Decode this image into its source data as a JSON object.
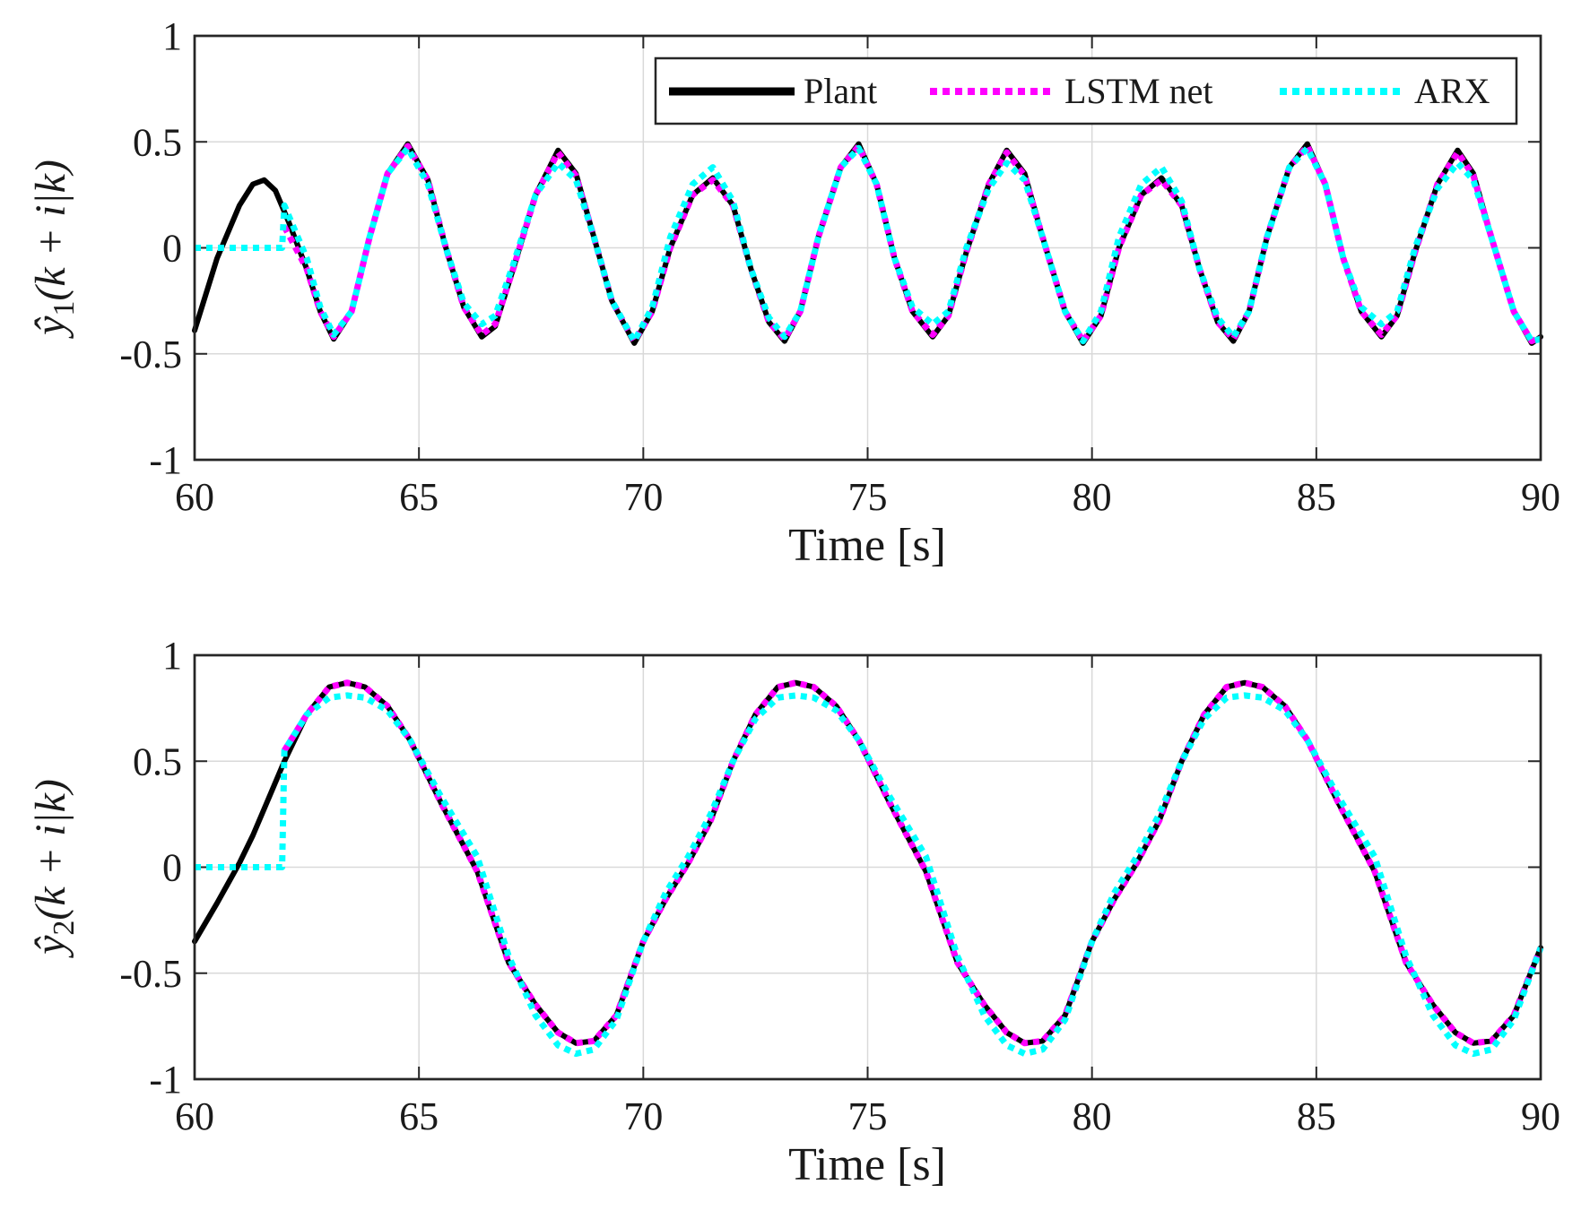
{
  "colors": {
    "plant": "#000000",
    "lstm": "#ff00ff",
    "arx": "#00ffff"
  },
  "legend": {
    "items": [
      "Plant",
      "LSTM net",
      "ARX"
    ]
  },
  "chart_data": [
    {
      "type": "line",
      "xlabel": "Time [s]",
      "ylabel": "ŷ1(k + i|k)",
      "ylabel_parts": {
        "base": "ŷ",
        "sub": "1",
        "rest": "(k + i|k)"
      },
      "xlim": [
        60,
        90
      ],
      "ylim": [
        -1,
        1
      ],
      "xticks": [
        60,
        65,
        70,
        75,
        80,
        85,
        90
      ],
      "xtick_labels": [
        "60",
        "65",
        "70",
        "75",
        "80",
        "85",
        "90"
      ],
      "yticks": [
        -1,
        -0.5,
        0,
        0.5,
        1
      ],
      "ytick_labels": [
        "-1",
        "-0.5",
        "0",
        "0.5",
        "1"
      ],
      "grid": true,
      "legend_position": "top-right",
      "series": [
        {
          "name": "Plant",
          "style": "solid",
          "x": [
            60,
            60.5,
            61,
            61.3,
            61.55,
            61.8,
            62.1,
            62.5,
            62.8,
            63.1,
            63.5,
            63.9,
            64.3,
            64.75,
            65.2,
            65.6,
            66,
            66.4,
            66.7,
            67.1,
            67.6,
            68.1,
            68.5,
            68.9,
            69.3,
            69.8,
            70.2,
            70.6,
            71.1,
            71.55,
            72,
            72.4,
            72.8,
            73.15,
            73.5,
            73.9,
            74.4,
            74.8,
            75.2,
            75.6,
            76,
            76.45,
            76.8,
            77.2,
            77.7,
            78.1,
            78.5,
            78.9,
            79.4,
            79.8,
            80.2,
            80.6,
            81.1,
            81.55,
            82,
            82.4,
            82.8,
            83.15,
            83.5,
            83.9,
            84.4,
            84.8,
            85.2,
            85.6,
            86,
            86.45,
            86.8,
            87.2,
            87.7,
            88.15,
            88.5,
            88.9,
            89.4,
            89.8,
            90
          ],
          "y": [
            -0.39,
            -0.05,
            0.2,
            0.3,
            0.32,
            0.27,
            0.12,
            -0.1,
            -0.3,
            -0.43,
            -0.3,
            0.05,
            0.35,
            0.49,
            0.32,
            0.0,
            -0.28,
            -0.42,
            -0.37,
            -0.1,
            0.25,
            0.46,
            0.35,
            0.05,
            -0.25,
            -0.45,
            -0.3,
            0.0,
            0.25,
            0.33,
            0.2,
            -0.1,
            -0.35,
            -0.44,
            -0.3,
            0.05,
            0.38,
            0.49,
            0.3,
            -0.05,
            -0.3,
            -0.42,
            -0.32,
            -0.02,
            0.3,
            0.46,
            0.35,
            0.05,
            -0.3,
            -0.45,
            -0.32,
            0.0,
            0.25,
            0.33,
            0.2,
            -0.1,
            -0.35,
            -0.44,
            -0.3,
            0.05,
            0.38,
            0.49,
            0.3,
            -0.05,
            -0.3,
            -0.42,
            -0.32,
            -0.02,
            0.3,
            0.46,
            0.35,
            0.05,
            -0.3,
            -0.45,
            -0.42
          ]
        },
        {
          "name": "LSTM net",
          "style": "dotted",
          "x": [
            62.0,
            62.5,
            62.8,
            63.1,
            63.5,
            63.9,
            64.3,
            64.75,
            65.2,
            65.6,
            66,
            66.4,
            66.7,
            67.1,
            67.6,
            68.1,
            68.5,
            68.9,
            69.3,
            69.8,
            70.2,
            70.6,
            71.1,
            71.55,
            72,
            72.4,
            72.8,
            73.15,
            73.5,
            73.9,
            74.4,
            74.8,
            75.2,
            75.6,
            76,
            76.45,
            76.8,
            77.2,
            77.7,
            78.1,
            78.5,
            78.9,
            79.4,
            79.8,
            80.2,
            80.6,
            81.1,
            81.55,
            82,
            82.4,
            82.8,
            83.15,
            83.5,
            83.9,
            84.4,
            84.8,
            85.2,
            85.6,
            86,
            86.45,
            86.8,
            87.2,
            87.7,
            88.15,
            88.5,
            88.9,
            89.4,
            89.8,
            90
          ],
          "y": [
            0.1,
            -0.1,
            -0.3,
            -0.42,
            -0.3,
            0.05,
            0.35,
            0.48,
            0.32,
            0.0,
            -0.28,
            -0.41,
            -0.36,
            -0.1,
            0.25,
            0.45,
            0.34,
            0.05,
            -0.25,
            -0.44,
            -0.3,
            0.0,
            0.25,
            0.32,
            0.2,
            -0.1,
            -0.35,
            -0.43,
            -0.3,
            0.05,
            0.38,
            0.48,
            0.3,
            -0.05,
            -0.3,
            -0.41,
            -0.32,
            -0.02,
            0.3,
            0.45,
            0.34,
            0.05,
            -0.3,
            -0.44,
            -0.32,
            0.0,
            0.25,
            0.32,
            0.2,
            -0.1,
            -0.35,
            -0.43,
            -0.3,
            0.05,
            0.38,
            0.48,
            0.3,
            -0.05,
            -0.3,
            -0.41,
            -0.32,
            -0.02,
            0.3,
            0.45,
            0.34,
            0.05,
            -0.3,
            -0.44,
            -0.42
          ]
        },
        {
          "name": "ARX",
          "style": "dotted",
          "x": [
            60,
            61.95,
            62.0,
            62.5,
            62.8,
            63.1,
            63.5,
            63.9,
            64.3,
            64.75,
            65.2,
            65.6,
            66,
            66.4,
            66.7,
            67.1,
            67.6,
            68.1,
            68.5,
            68.9,
            69.3,
            69.8,
            70.2,
            70.6,
            71.1,
            71.55,
            72,
            72.4,
            72.8,
            73.15,
            73.5,
            73.9,
            74.4,
            74.8,
            75.2,
            75.6,
            76,
            76.45,
            76.8,
            77.2,
            77.7,
            78.1,
            78.5,
            78.9,
            79.4,
            79.8,
            80.2,
            80.6,
            81.1,
            81.55,
            82,
            82.4,
            82.8,
            83.15,
            83.5,
            83.9,
            84.4,
            84.8,
            85.2,
            85.6,
            86,
            86.45,
            86.8,
            87.2,
            87.7,
            88.15,
            88.5,
            88.9,
            89.4,
            89.8,
            90
          ],
          "y": [
            0,
            0,
            0.2,
            -0.05,
            -0.28,
            -0.41,
            -0.3,
            0.05,
            0.35,
            0.47,
            0.3,
            0.0,
            -0.26,
            -0.36,
            -0.32,
            -0.08,
            0.25,
            0.4,
            0.32,
            0.05,
            -0.25,
            -0.44,
            -0.28,
            0.05,
            0.3,
            0.38,
            0.22,
            -0.1,
            -0.33,
            -0.42,
            -0.3,
            0.05,
            0.38,
            0.47,
            0.3,
            -0.05,
            -0.28,
            -0.36,
            -0.3,
            0.0,
            0.28,
            0.4,
            0.32,
            0.05,
            -0.3,
            -0.44,
            -0.3,
            0.05,
            0.3,
            0.38,
            0.22,
            -0.1,
            -0.33,
            -0.42,
            -0.3,
            0.05,
            0.38,
            0.47,
            0.3,
            -0.05,
            -0.28,
            -0.36,
            -0.3,
            0.0,
            0.28,
            0.4,
            0.32,
            0.05,
            -0.3,
            -0.44,
            -0.43
          ]
        }
      ]
    },
    {
      "type": "line",
      "xlabel": "Time [s]",
      "ylabel": "ŷ2(k + i|k)",
      "ylabel_parts": {
        "base": "ŷ",
        "sub": "2",
        "rest": "(k + i|k)"
      },
      "xlim": [
        60,
        90
      ],
      "ylim": [
        -1,
        1
      ],
      "xticks": [
        60,
        65,
        70,
        75,
        80,
        85,
        90
      ],
      "xtick_labels": [
        "60",
        "65",
        "70",
        "75",
        "80",
        "85",
        "90"
      ],
      "yticks": [
        -1,
        -0.5,
        0,
        0.5,
        1
      ],
      "ytick_labels": [
        "-1",
        "-0.5",
        "0",
        "0.5",
        "1"
      ],
      "grid": true,
      "series": [
        {
          "name": "Plant",
          "style": "solid",
          "x": [
            60,
            60.5,
            61.0,
            61.3,
            61.6,
            62.0,
            62.5,
            63.0,
            63.4,
            63.8,
            64.3,
            64.8,
            65.5,
            66.3,
            67.0,
            67.6,
            68.1,
            68.5,
            68.9,
            69.4,
            70.0,
            70.5,
            71.0,
            71.5,
            72.0,
            72.5,
            73.0,
            73.4,
            73.8,
            74.3,
            74.8,
            75.5,
            76.3,
            77.0,
            77.6,
            78.1,
            78.5,
            78.9,
            79.4,
            80.0,
            80.5,
            81.0,
            81.5,
            82.0,
            82.5,
            83.0,
            83.4,
            83.8,
            84.3,
            84.8,
            85.5,
            86.3,
            87.0,
            87.6,
            88.1,
            88.5,
            88.9,
            89.4,
            90.0
          ],
          "y": [
            -0.35,
            -0.17,
            0.02,
            0.15,
            0.3,
            0.5,
            0.72,
            0.85,
            0.87,
            0.85,
            0.76,
            0.6,
            0.3,
            -0.02,
            -0.45,
            -0.65,
            -0.78,
            -0.83,
            -0.82,
            -0.7,
            -0.35,
            -0.15,
            0.02,
            0.22,
            0.5,
            0.72,
            0.85,
            0.87,
            0.85,
            0.76,
            0.6,
            0.3,
            -0.02,
            -0.45,
            -0.65,
            -0.78,
            -0.83,
            -0.82,
            -0.7,
            -0.35,
            -0.15,
            0.02,
            0.22,
            0.5,
            0.72,
            0.85,
            0.87,
            0.85,
            0.76,
            0.6,
            0.3,
            -0.02,
            -0.45,
            -0.65,
            -0.78,
            -0.83,
            -0.82,
            -0.7,
            -0.38
          ]
        },
        {
          "name": "LSTM net",
          "style": "dotted",
          "x": [
            62.0,
            62.5,
            63.0,
            63.4,
            63.8,
            64.3,
            64.8,
            65.5,
            66.3,
            67.0,
            67.6,
            68.1,
            68.5,
            68.9,
            69.4,
            70.0,
            70.5,
            71.0,
            71.5,
            72.0,
            72.5,
            73.0,
            73.4,
            73.8,
            74.3,
            74.8,
            75.5,
            76.3,
            77.0,
            77.6,
            78.1,
            78.5,
            78.9,
            79.4,
            80.0,
            80.5,
            81.0,
            81.5,
            82.0,
            82.5,
            83.0,
            83.4,
            83.8,
            84.3,
            84.8,
            85.5,
            86.3,
            87.0,
            87.6,
            88.1,
            88.5,
            88.9,
            89.4,
            90.0
          ],
          "y": [
            0.55,
            0.72,
            0.85,
            0.87,
            0.85,
            0.76,
            0.6,
            0.3,
            -0.02,
            -0.45,
            -0.65,
            -0.78,
            -0.83,
            -0.82,
            -0.7,
            -0.35,
            -0.15,
            0.02,
            0.22,
            0.5,
            0.72,
            0.85,
            0.87,
            0.85,
            0.76,
            0.6,
            0.3,
            -0.02,
            -0.45,
            -0.65,
            -0.78,
            -0.83,
            -0.82,
            -0.7,
            -0.35,
            -0.15,
            0.02,
            0.22,
            0.5,
            0.72,
            0.85,
            0.87,
            0.85,
            0.76,
            0.6,
            0.3,
            -0.02,
            -0.45,
            -0.65,
            -0.78,
            -0.83,
            -0.82,
            -0.7,
            -0.38
          ]
        },
        {
          "name": "ARX",
          "style": "dotted",
          "x": [
            60,
            61.95,
            62.0,
            62.5,
            63.0,
            63.4,
            63.8,
            64.3,
            64.8,
            65.5,
            66.3,
            67.0,
            67.6,
            68.1,
            68.5,
            68.9,
            69.4,
            70.0,
            70.5,
            71.0,
            71.5,
            72.0,
            72.5,
            73.0,
            73.4,
            73.8,
            74.3,
            74.8,
            75.5,
            76.3,
            77.0,
            77.6,
            78.1,
            78.5,
            78.9,
            79.4,
            80.0,
            80.5,
            81.0,
            81.5,
            82.0,
            82.5,
            83.0,
            83.4,
            83.8,
            84.3,
            84.8,
            85.5,
            86.3,
            87.0,
            87.6,
            88.1,
            88.5,
            88.9,
            89.4,
            90.0
          ],
          "y": [
            0,
            0,
            0.55,
            0.72,
            0.8,
            0.81,
            0.8,
            0.74,
            0.6,
            0.33,
            0.05,
            -0.42,
            -0.7,
            -0.84,
            -0.88,
            -0.86,
            -0.72,
            -0.35,
            -0.12,
            0.05,
            0.25,
            0.5,
            0.7,
            0.8,
            0.81,
            0.8,
            0.74,
            0.6,
            0.33,
            0.05,
            -0.42,
            -0.7,
            -0.84,
            -0.88,
            -0.86,
            -0.72,
            -0.35,
            -0.12,
            0.05,
            0.25,
            0.5,
            0.7,
            0.8,
            0.81,
            0.8,
            0.74,
            0.6,
            0.33,
            0.05,
            -0.42,
            -0.7,
            -0.84,
            -0.88,
            -0.86,
            -0.72,
            -0.38
          ]
        }
      ]
    }
  ]
}
